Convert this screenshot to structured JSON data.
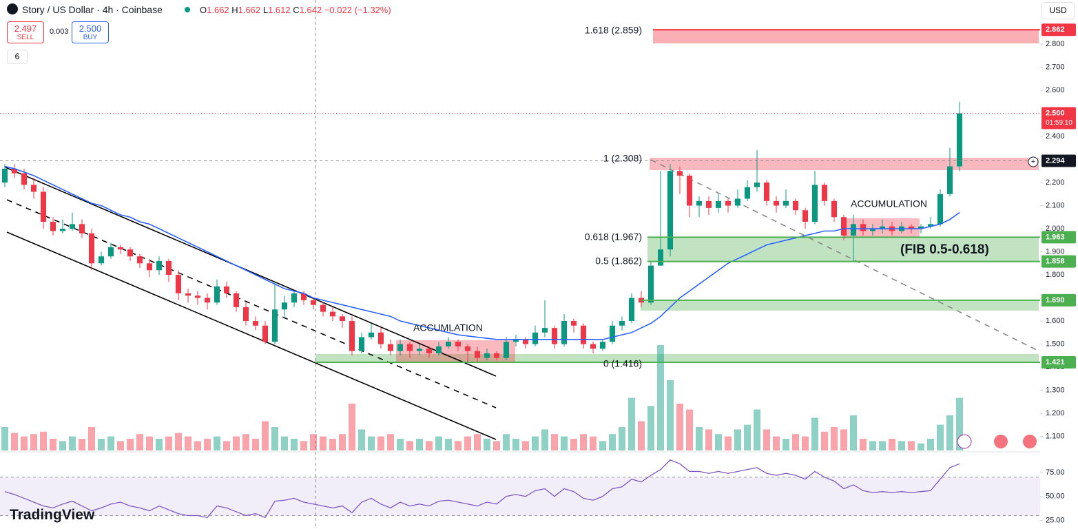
{
  "header": {
    "symbol": "Story / US Dollar · 4h · Coinbase",
    "o_key": "O",
    "o": "1.662",
    "h_key": "H",
    "h": "1.662",
    "l_key": "L",
    "l": "1.612",
    "c_key": "C",
    "c": "1.642",
    "change": "−0.022 (−1.32%)"
  },
  "trade": {
    "sell": "2.497",
    "sell_label": "SELL",
    "spread": "0.003",
    "buy": "2.500",
    "buy_label": "BUY"
  },
  "indicators": "6",
  "currency": "USD",
  "logo": "TradingView",
  "fib": [
    "1.618 (2.859)",
    "1 (2.308)",
    "0.618 (1.967)",
    "0.5 (1.862)",
    "0 (1.416)"
  ],
  "annotations": [
    "ACCUMLATION",
    "ACCUMULATION",
    "(FIB 0.5-0.618)"
  ],
  "chart_data": {
    "type": "candlestick",
    "open": [
      2.2,
      2.26,
      2.24,
      2.19,
      2.16,
      2.03,
      1.99,
      2.0,
      2.02,
      1.98,
      1.85,
      1.88,
      1.92,
      1.91,
      1.88,
      1.85,
      1.82,
      1.86,
      1.8,
      1.72,
      1.71,
      1.7,
      1.68,
      1.75,
      1.72,
      1.66,
      1.6,
      1.58,
      1.51,
      1.65,
      1.68,
      1.72,
      1.69,
      1.67,
      1.64,
      1.62,
      1.6,
      1.47,
      1.53,
      1.55,
      1.5,
      1.47,
      1.5,
      1.47,
      1.48,
      1.46,
      1.49,
      1.51,
      1.49,
      1.47,
      1.44,
      1.46,
      1.44,
      1.51,
      1.52,
      1.5,
      1.55,
      1.57,
      1.5,
      1.6,
      1.58,
      1.5,
      1.48,
      1.51,
      1.58,
      1.6,
      1.7,
      1.68,
      1.84,
      1.91,
      2.25,
      2.23,
      2.1,
      2.12,
      2.09,
      2.12,
      2.1,
      2.13,
      2.18,
      2.2,
      2.12,
      2.1,
      2.12,
      2.08,
      2.03,
      2.19,
      2.12,
      2.05,
      1.97,
      2.02,
      1.99,
      2.0,
      2.01,
      1.99,
      2.01,
      2.0,
      2.01,
      2.02,
      2.15,
      2.27
    ],
    "high": [
      2.28,
      2.28,
      2.26,
      2.22,
      2.18,
      2.05,
      2.04,
      2.07,
      2.04,
      2.0,
      1.9,
      1.94,
      1.93,
      1.92,
      1.89,
      1.87,
      1.88,
      1.87,
      1.82,
      1.74,
      1.73,
      1.72,
      1.78,
      1.77,
      1.73,
      1.68,
      1.62,
      1.6,
      1.77,
      1.71,
      1.73,
      1.73,
      1.7,
      1.68,
      1.66,
      1.63,
      1.62,
      1.55,
      1.59,
      1.57,
      1.52,
      1.52,
      1.51,
      1.5,
      1.49,
      1.51,
      1.53,
      1.52,
      1.5,
      1.49,
      1.48,
      1.47,
      1.53,
      1.54,
      1.53,
      1.58,
      1.69,
      1.58,
      1.63,
      1.61,
      1.59,
      1.51,
      1.52,
      1.6,
      1.62,
      1.72,
      1.73,
      1.86,
      2.25,
      2.28,
      2.27,
      2.24,
      2.14,
      2.14,
      2.15,
      2.13,
      2.17,
      2.21,
      2.34,
      2.21,
      2.14,
      2.17,
      2.13,
      2.09,
      2.25,
      2.2,
      2.13,
      2.06,
      2.06,
      2.04,
      2.02,
      2.04,
      2.03,
      2.03,
      2.02,
      2.02,
      2.05,
      2.17,
      2.35,
      2.55
    ],
    "low": [
      2.18,
      2.22,
      2.17,
      2.13,
      2.0,
      1.97,
      1.98,
      1.99,
      1.96,
      1.82,
      1.84,
      1.87,
      1.89,
      1.86,
      1.83,
      1.79,
      1.8,
      1.77,
      1.69,
      1.68,
      1.67,
      1.65,
      1.67,
      1.7,
      1.64,
      1.58,
      1.56,
      1.5,
      1.5,
      1.62,
      1.66,
      1.67,
      1.65,
      1.62,
      1.6,
      1.57,
      1.45,
      1.46,
      1.52,
      1.48,
      1.45,
      1.45,
      1.44,
      1.45,
      1.44,
      1.45,
      1.48,
      1.47,
      1.42,
      1.42,
      1.43,
      1.43,
      1.43,
      1.49,
      1.48,
      1.49,
      1.53,
      1.48,
      1.49,
      1.55,
      1.48,
      1.46,
      1.47,
      1.5,
      1.56,
      1.59,
      1.66,
      1.67,
      1.84,
      1.88,
      2.15,
      2.05,
      2.05,
      2.06,
      2.07,
      2.07,
      2.09,
      2.12,
      2.16,
      2.1,
      2.07,
      2.09,
      2.06,
      2.0,
      2.02,
      2.1,
      2.03,
      1.95,
      1.86,
      1.97,
      1.97,
      1.98,
      1.97,
      1.98,
      1.98,
      1.98,
      2.0,
      2.01,
      2.14,
      2.25
    ],
    "close": [
      2.26,
      2.24,
      2.19,
      2.16,
      2.03,
      1.99,
      2.0,
      2.02,
      1.98,
      1.85,
      1.88,
      1.92,
      1.91,
      1.88,
      1.85,
      1.82,
      1.86,
      1.8,
      1.72,
      1.71,
      1.7,
      1.68,
      1.75,
      1.72,
      1.66,
      1.6,
      1.58,
      1.51,
      1.65,
      1.68,
      1.72,
      1.69,
      1.67,
      1.64,
      1.62,
      1.6,
      1.47,
      1.53,
      1.55,
      1.5,
      1.47,
      1.5,
      1.47,
      1.48,
      1.46,
      1.49,
      1.51,
      1.49,
      1.47,
      1.44,
      1.46,
      1.44,
      1.51,
      1.52,
      1.5,
      1.55,
      1.57,
      1.5,
      1.6,
      1.58,
      1.5,
      1.48,
      1.51,
      1.58,
      1.6,
      1.7,
      1.68,
      1.84,
      1.91,
      2.25,
      2.23,
      2.1,
      2.12,
      2.09,
      2.12,
      2.1,
      2.13,
      2.18,
      2.2,
      2.12,
      2.1,
      2.12,
      2.08,
      2.03,
      2.19,
      2.12,
      2.05,
      1.97,
      2.02,
      1.99,
      2.0,
      2.01,
      1.99,
      2.01,
      2.0,
      2.01,
      2.02,
      2.15,
      2.27,
      2.5
    ],
    "up_color": "#089981",
    "down_color": "#f23645",
    "ylim": [
      1.036,
      2.991
    ],
    "yticks": [
      {
        "value": 1.1,
        "label": "1.100"
      },
      {
        "value": 1.2,
        "label": "1.200"
      },
      {
        "value": 1.3,
        "label": "1.300"
      },
      {
        "value": 1.4,
        "label": "1.400"
      },
      {
        "value": 1.5,
        "label": "1.500"
      },
      {
        "value": 1.6,
        "label": "1.600"
      },
      {
        "value": 1.8,
        "label": "1.800"
      },
      {
        "value": 1.9,
        "label": "1.900"
      },
      {
        "value": 2.0,
        "label": "2.000"
      },
      {
        "value": 2.1,
        "label": "2.100"
      },
      {
        "value": 2.2,
        "label": "2.200"
      },
      {
        "value": 2.4,
        "label": "2.400"
      },
      {
        "value": 2.6,
        "label": "2.600"
      },
      {
        "value": 2.7,
        "label": "2.700"
      },
      {
        "value": 2.8,
        "label": "2.800"
      }
    ],
    "ma": {
      "color": "#2962ff",
      "values": [
        2.27,
        2.26,
        2.245,
        2.23,
        2.21,
        2.19,
        2.17,
        2.15,
        2.13,
        2.11,
        2.1,
        2.08,
        2.06,
        2.05,
        2.03,
        2.02,
        2.0,
        1.98,
        1.96,
        1.94,
        1.92,
        1.9,
        1.88,
        1.86,
        1.84,
        1.82,
        1.8,
        1.78,
        1.76,
        1.74,
        1.73,
        1.72,
        1.7,
        1.69,
        1.68,
        1.67,
        1.66,
        1.65,
        1.64,
        1.63,
        1.62,
        1.6,
        1.59,
        1.58,
        1.57,
        1.56,
        1.55,
        1.54,
        1.535,
        1.53,
        1.525,
        1.52,
        1.52,
        1.52,
        1.52,
        1.52,
        1.52,
        1.52,
        1.52,
        1.52,
        1.52,
        1.52,
        1.52,
        1.53,
        1.54,
        1.55,
        1.57,
        1.59,
        1.62,
        1.66,
        1.7,
        1.73,
        1.76,
        1.79,
        1.82,
        1.85,
        1.87,
        1.89,
        1.91,
        1.93,
        1.94,
        1.95,
        1.96,
        1.97,
        1.98,
        1.99,
        1.99,
        2.0,
        2.0,
        2.0,
        2.0,
        2.0,
        2.0,
        2.0,
        2.0,
        2.0,
        2.01,
        2.02,
        2.04,
        2.07
      ]
    },
    "price_levels": [
      {
        "value": 2.862,
        "color": "#f23645"
      },
      {
        "value": 2.5,
        "label": "2.500",
        "countdown": "01:59:10",
        "color": "#f23645"
      },
      {
        "value": 2.294,
        "color": "#131722"
      },
      {
        "value": 1.963,
        "color": "#4caf50"
      },
      {
        "value": 1.858,
        "color": "#4caf50"
      },
      {
        "value": 1.69,
        "label": "1.690",
        "color": "#4caf50"
      },
      {
        "value": 1.421,
        "color": "#4caf50"
      }
    ],
    "volume": {
      "vlim": [
        0,
        100
      ],
      "values": [
        20,
        15,
        12,
        14,
        16,
        10,
        8,
        12,
        10,
        20,
        10,
        12,
        8,
        10,
        14,
        12,
        10,
        12,
        15,
        12,
        8,
        10,
        12,
        8,
        12,
        14,
        10,
        25,
        20,
        12,
        10,
        8,
        14,
        12,
        10,
        14,
        40,
        18,
        12,
        12,
        14,
        10,
        8,
        10,
        8,
        12,
        10,
        8,
        12,
        14,
        10,
        8,
        14,
        10,
        8,
        12,
        18,
        14,
        12,
        10,
        14,
        12,
        8,
        14,
        20,
        45,
        25,
        38,
        90,
        60,
        40,
        35,
        20,
        18,
        14,
        12,
        18,
        22,
        35,
        18,
        12,
        10,
        14,
        12,
        28,
        16,
        20,
        18,
        30,
        10,
        8,
        8,
        10,
        8,
        8,
        6,
        10,
        22,
        30,
        45
      ]
    },
    "rsi": {
      "color": "#7e57c2",
      "ylim": [
        16,
        95
      ],
      "band": [
        30,
        70
      ],
      "yticks": [
        {
          "value": 75,
          "label": "75.00"
        },
        {
          "value": 50,
          "label": "50.00"
        },
        {
          "value": 25,
          "label": "25.00"
        }
      ],
      "values": [
        55,
        52,
        48,
        44,
        40,
        38,
        42,
        45,
        40,
        35,
        38,
        42,
        44,
        40,
        38,
        35,
        40,
        36,
        32,
        30,
        30,
        28,
        40,
        38,
        34,
        30,
        32,
        28,
        45,
        46,
        48,
        44,
        42,
        40,
        38,
        40,
        33,
        44,
        48,
        42,
        38,
        44,
        40,
        42,
        40,
        45,
        46,
        44,
        42,
        40,
        44,
        42,
        50,
        52,
        50,
        56,
        58,
        50,
        58,
        55,
        48,
        46,
        50,
        58,
        60,
        68,
        65,
        72,
        78,
        88,
        84,
        76,
        76,
        74,
        76,
        74,
        76,
        78,
        80,
        74,
        72,
        74,
        72,
        68,
        76,
        70,
        66,
        58,
        62,
        56,
        54,
        55,
        54,
        55,
        54,
        55,
        56,
        68,
        80,
        84
      ]
    }
  }
}
